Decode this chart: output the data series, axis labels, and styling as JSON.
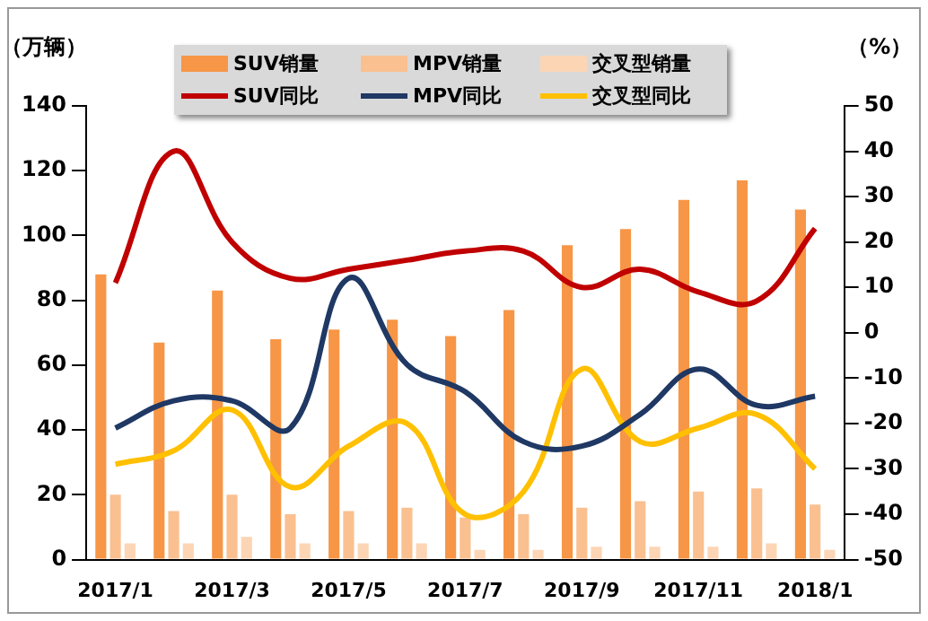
{
  "chart_data": {
    "type": "bar",
    "ylabel": "（万辆）",
    "y2label": "（%）",
    "categories": [
      "2017/1",
      null,
      "2017/3",
      null,
      "2017/5",
      null,
      "2017/7",
      null,
      "2017/9",
      null,
      "2017/11",
      null,
      "2018/1"
    ],
    "series": [
      {
        "name": "SUV销量",
        "color": "#f79646",
        "values": [
          88,
          67,
          83,
          68,
          71,
          74,
          69,
          77,
          97,
          102,
          111,
          117,
          108
        ]
      },
      {
        "name": "MPV销量",
        "color": "#fac090",
        "values": [
          20,
          15,
          20,
          14,
          15,
          16,
          13,
          14,
          16,
          18,
          21,
          22,
          17
        ]
      },
      {
        "name": "交叉型销量",
        "color": "#fcd5b5",
        "values": [
          5,
          5,
          7,
          5,
          5,
          5,
          3,
          3,
          4,
          4,
          4,
          5,
          3
        ]
      },
      {
        "name": "SUV同比",
        "type": "line",
        "axis": "y2",
        "color": "#c00000",
        "values": [
          11,
          40,
          20,
          12,
          14,
          16,
          18,
          18,
          10,
          14,
          9,
          7,
          23
        ]
      },
      {
        "name": "MPV同比",
        "type": "line",
        "axis": "y2",
        "color": "#1f3864",
        "values": [
          -21,
          -15,
          -15,
          -21,
          12,
          -7,
          -13,
          -24,
          -25,
          -18,
          -8,
          -16,
          -14
        ]
      },
      {
        "name": "交叉型同比",
        "type": "line",
        "axis": "y2",
        "color": "#ffc000",
        "values": [
          -29,
          -26,
          -17,
          -34,
          -25,
          -20,
          -40,
          -35,
          -8,
          -24,
          -21,
          -18,
          -30
        ]
      }
    ],
    "ylim": [
      0,
      140
    ],
    "yticks": [
      0,
      20,
      40,
      60,
      80,
      100,
      120,
      140
    ],
    "y2lim": [
      -50,
      50
    ],
    "y2ticks": [
      -50,
      -40,
      -30,
      -20,
      -10,
      0,
      10,
      20,
      30,
      40,
      50
    ],
    "grid": false,
    "legend": "top",
    "marker": "none",
    "line_style": "solid"
  }
}
